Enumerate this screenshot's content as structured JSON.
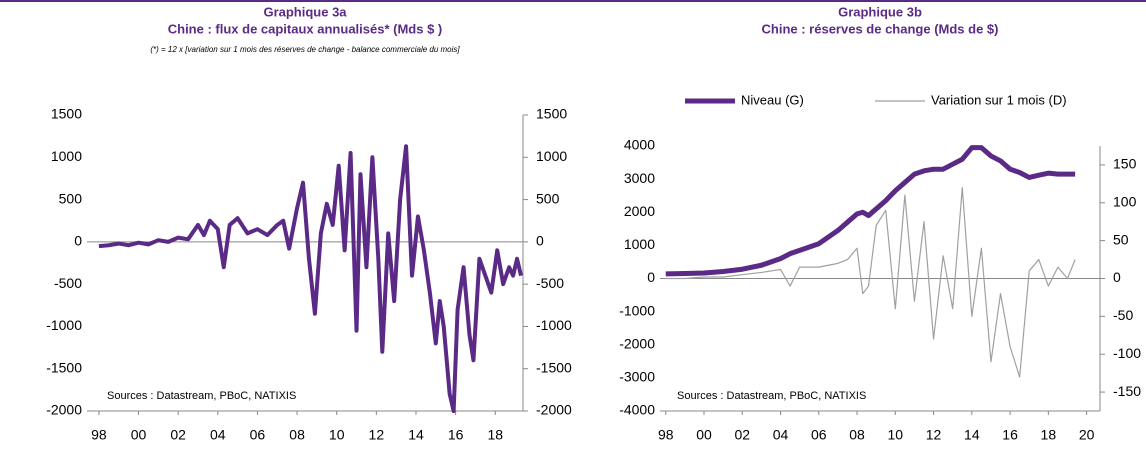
{
  "chart_data": [
    {
      "type": "line",
      "title": "Graphique 3a",
      "subtitle": "Chine : flux de capitaux annualisés* (Mds $ )",
      "note": "(*) = 12 x [variation sur 1 mois des réserves de change - balance commerciale du mois]",
      "source": "Sources : Datastream, PBoC, NATIXIS",
      "x": [
        1998,
        1998.5,
        1999,
        1999.5,
        2000,
        2000.5,
        2001,
        2001.5,
        2002,
        2002.5,
        2003,
        2003.3,
        2003.6,
        2004,
        2004.3,
        2004.6,
        2005,
        2005.5,
        2006,
        2006.5,
        2007,
        2007.3,
        2007.6,
        2008,
        2008.3,
        2008.6,
        2008.9,
        2009.2,
        2009.5,
        2009.8,
        2010.1,
        2010.4,
        2010.7,
        2011,
        2011.2,
        2011.5,
        2011.8,
        2012.1,
        2012.3,
        2012.6,
        2012.9,
        2013.2,
        2013.5,
        2013.8,
        2014.1,
        2014.4,
        2014.7,
        2015,
        2015.2,
        2015.4,
        2015.7,
        2015.9,
        2016.1,
        2016.4,
        2016.7,
        2016.9,
        2017.2,
        2017.5,
        2017.8,
        2018.1,
        2018.4,
        2018.7,
        2018.9,
        2019.1,
        2019.3
      ],
      "series": [
        {
          "color": "#5b2a86",
          "values": [
            -50,
            -40,
            -20,
            -40,
            -10,
            -30,
            20,
            0,
            50,
            30,
            200,
            80,
            250,
            150,
            -300,
            200,
            280,
            100,
            150,
            80,
            200,
            250,
            -80,
            400,
            700,
            -200,
            -850,
            100,
            450,
            200,
            900,
            -100,
            1050,
            -1050,
            800,
            -300,
            1000,
            -200,
            -1300,
            100,
            -700,
            500,
            1130,
            -400,
            300,
            -100,
            -600,
            -1200,
            -700,
            -1000,
            -1800,
            -2000,
            -800,
            -300,
            -1100,
            -1400,
            -200,
            -400,
            -600,
            -100,
            -500,
            -300,
            -400,
            -200,
            -400
          ]
        }
      ],
      "xlim": [
        1997.4,
        2019.4
      ],
      "xticks": [
        {
          "value": 1998,
          "label": "98"
        },
        {
          "value": 2000,
          "label": "00"
        },
        {
          "value": 2002,
          "label": "02"
        },
        {
          "value": 2004,
          "label": "04"
        },
        {
          "value": 2006,
          "label": "06"
        },
        {
          "value": 2008,
          "label": "08"
        },
        {
          "value": 2010,
          "label": "10"
        },
        {
          "value": 2012,
          "label": "12"
        },
        {
          "value": 2014,
          "label": "14"
        },
        {
          "value": 2016,
          "label": "16"
        },
        {
          "value": 2018,
          "label": "18"
        }
      ],
      "ylim": [
        -2000,
        1500
      ],
      "yticks": [
        -2000,
        -1500,
        -1000,
        -500,
        0,
        500,
        1000,
        1500
      ],
      "y2lim": [
        -2000,
        1500
      ],
      "y2ticks": [
        -2000,
        -1500,
        -1000,
        -500,
        0,
        500,
        1000,
        1500
      ]
    },
    {
      "type": "line",
      "title": "Graphique 3b",
      "subtitle": "Chine : réserves de change (Mds de $)",
      "source": "Sources : Datastream, PBoC, NATIXIS",
      "x": [
        1998,
        1999,
        2000,
        2001,
        2002,
        2003,
        2004,
        2004.5,
        2005,
        2006,
        2007,
        2007.5,
        2008,
        2008.3,
        2008.6,
        2009,
        2009.5,
        2010,
        2010.5,
        2011,
        2011.5,
        2012,
        2012.5,
        2013,
        2013.5,
        2014,
        2014.5,
        2015,
        2015.5,
        2016,
        2016.5,
        2017,
        2017.5,
        2018,
        2018.5,
        2019,
        2019.4
      ],
      "series": [
        {
          "name": "Niveau (G)",
          "color": "#5b2a86",
          "width": 5,
          "values": [
            140,
            150,
            165,
            210,
            280,
            400,
            600,
            750,
            850,
            1050,
            1450,
            1700,
            1950,
            2000,
            1900,
            2100,
            2350,
            2650,
            2900,
            3150,
            3250,
            3300,
            3300,
            3450,
            3600,
            3950,
            3950,
            3700,
            3550,
            3300,
            3200,
            3050,
            3120,
            3180,
            3150,
            3150,
            3150
          ]
        },
        {
          "name": "Variation sur 1 mois (D)",
          "color": "#a0a0a0",
          "width": 1.2,
          "axis": "y2",
          "values": [
            0,
            0,
            2,
            2,
            5,
            8,
            12,
            -10,
            15,
            15,
            20,
            25,
            40,
            -20,
            -10,
            70,
            90,
            -40,
            110,
            -30,
            75,
            -80,
            30,
            -40,
            120,
            -50,
            40,
            -110,
            -20,
            -90,
            -130,
            10,
            25,
            -10,
            15,
            0,
            25
          ]
        }
      ],
      "xlim": [
        1997.7,
        2020.7
      ],
      "xticks": [
        {
          "value": 1998,
          "label": "98"
        },
        {
          "value": 2000,
          "label": "00"
        },
        {
          "value": 2002,
          "label": "02"
        },
        {
          "value": 2004,
          "label": "04"
        },
        {
          "value": 2006,
          "label": "06"
        },
        {
          "value": 2008,
          "label": "08"
        },
        {
          "value": 2010,
          "label": "10"
        },
        {
          "value": 2012,
          "label": "12"
        },
        {
          "value": 2014,
          "label": "14"
        },
        {
          "value": 2016,
          "label": "16"
        },
        {
          "value": 2018,
          "label": "18"
        },
        {
          "value": 2020,
          "label": "20"
        }
      ],
      "ylim": [
        -4000,
        4000
      ],
      "yticks": [
        -4000,
        -3000,
        -2000,
        -1000,
        0,
        1000,
        2000,
        3000,
        4000
      ],
      "y2lim": [
        -175,
        175
      ],
      "y2ticks": [
        -150,
        -100,
        -50,
        0,
        50,
        100,
        150
      ]
    }
  ]
}
